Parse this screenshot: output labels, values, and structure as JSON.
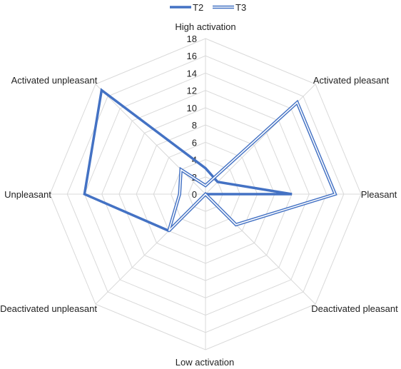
{
  "chart_data": {
    "type": "radar",
    "axes": [
      "High activation",
      "Activated pleasant",
      "Pleasant",
      "Deactivated pleasant",
      "Low activation",
      "Deactivated unpleasant",
      "Unpleasant",
      "Activated unpleasant"
    ],
    "rlim": [
      0,
      18
    ],
    "ticks": [
      "0",
      "2",
      "4",
      "6",
      "8",
      "10",
      "12",
      "14",
      "16",
      "18"
    ],
    "grid": true,
    "legend_position": "top",
    "series": [
      {
        "name": "T2",
        "style": "solid",
        "color": "#4472C4",
        "values": [
          3,
          2,
          10,
          0,
          0,
          6,
          14,
          17
        ]
      },
      {
        "name": "T3",
        "style": "double",
        "color": "#4472C4",
        "values": [
          1,
          15,
          15,
          5,
          0,
          6,
          3,
          4
        ]
      }
    ]
  }
}
